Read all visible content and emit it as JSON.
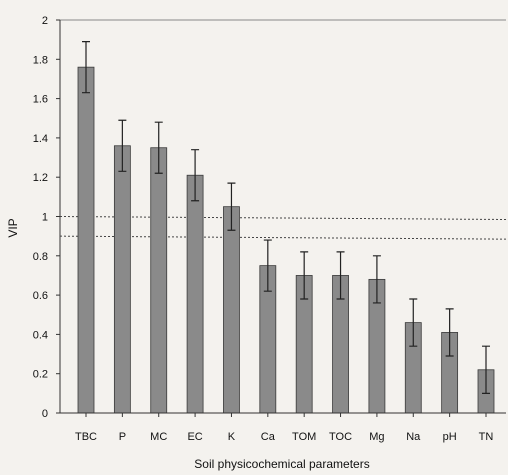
{
  "chart_data": {
    "type": "bar",
    "categories": [
      "TBC",
      "P",
      "MC",
      "EC",
      "K",
      "Ca",
      "TOM",
      "TOC",
      "Mg",
      "Na",
      "pH",
      "TN"
    ],
    "values": [
      1.76,
      1.36,
      1.35,
      1.21,
      1.05,
      0.75,
      0.7,
      0.7,
      0.68,
      0.46,
      0.41,
      0.22
    ],
    "errors": [
      0.13,
      0.13,
      0.13,
      0.13,
      0.12,
      0.13,
      0.12,
      0.12,
      0.12,
      0.12,
      0.12,
      0.12
    ],
    "xlabel": "Soil physicochemical parameters",
    "ylabel": "VIP",
    "ylim": [
      0,
      2
    ],
    "yticks": [
      "0",
      "0.2",
      "0.4",
      "0.6",
      "0.8",
      "1",
      "1.2",
      "1.4",
      "1.6",
      "1.8",
      "2"
    ],
    "reference_lines": [
      1.0,
      0.9
    ],
    "grid": false,
    "colors": {
      "bar": "#8a8a8a",
      "bar_edge": "#3a3a3a"
    }
  }
}
